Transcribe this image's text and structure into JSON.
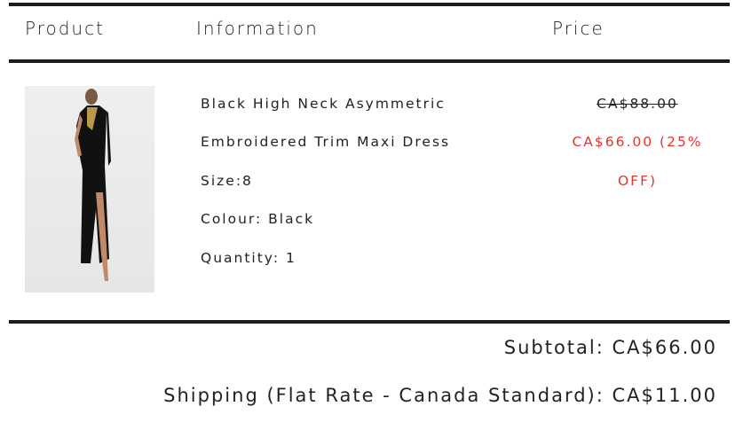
{
  "table": {
    "headers": {
      "product": "Product",
      "information": "Information",
      "price": "Price"
    }
  },
  "item": {
    "image_alt": "Black High Neck Asymmetric Embroidered Trim Maxi Dress",
    "name_line1": "Black High Neck Asymmetric",
    "name_line2": "Embroidered Trim Maxi Dress",
    "size": "Size:8",
    "colour": "Colour: Black",
    "quantity": "Quantity: 1",
    "original_price": "CA$88.00",
    "sale_price_line1": "CA$66.00 (25%",
    "sale_price_line2": "OFF)"
  },
  "totals": {
    "subtotal": "Subtotal: CA$66.00",
    "shipping": "Shipping (Flat Rate - Canada Standard): CA$11.00"
  },
  "colors": {
    "sale": "#e8342d",
    "rule": "#1c1c1c"
  }
}
